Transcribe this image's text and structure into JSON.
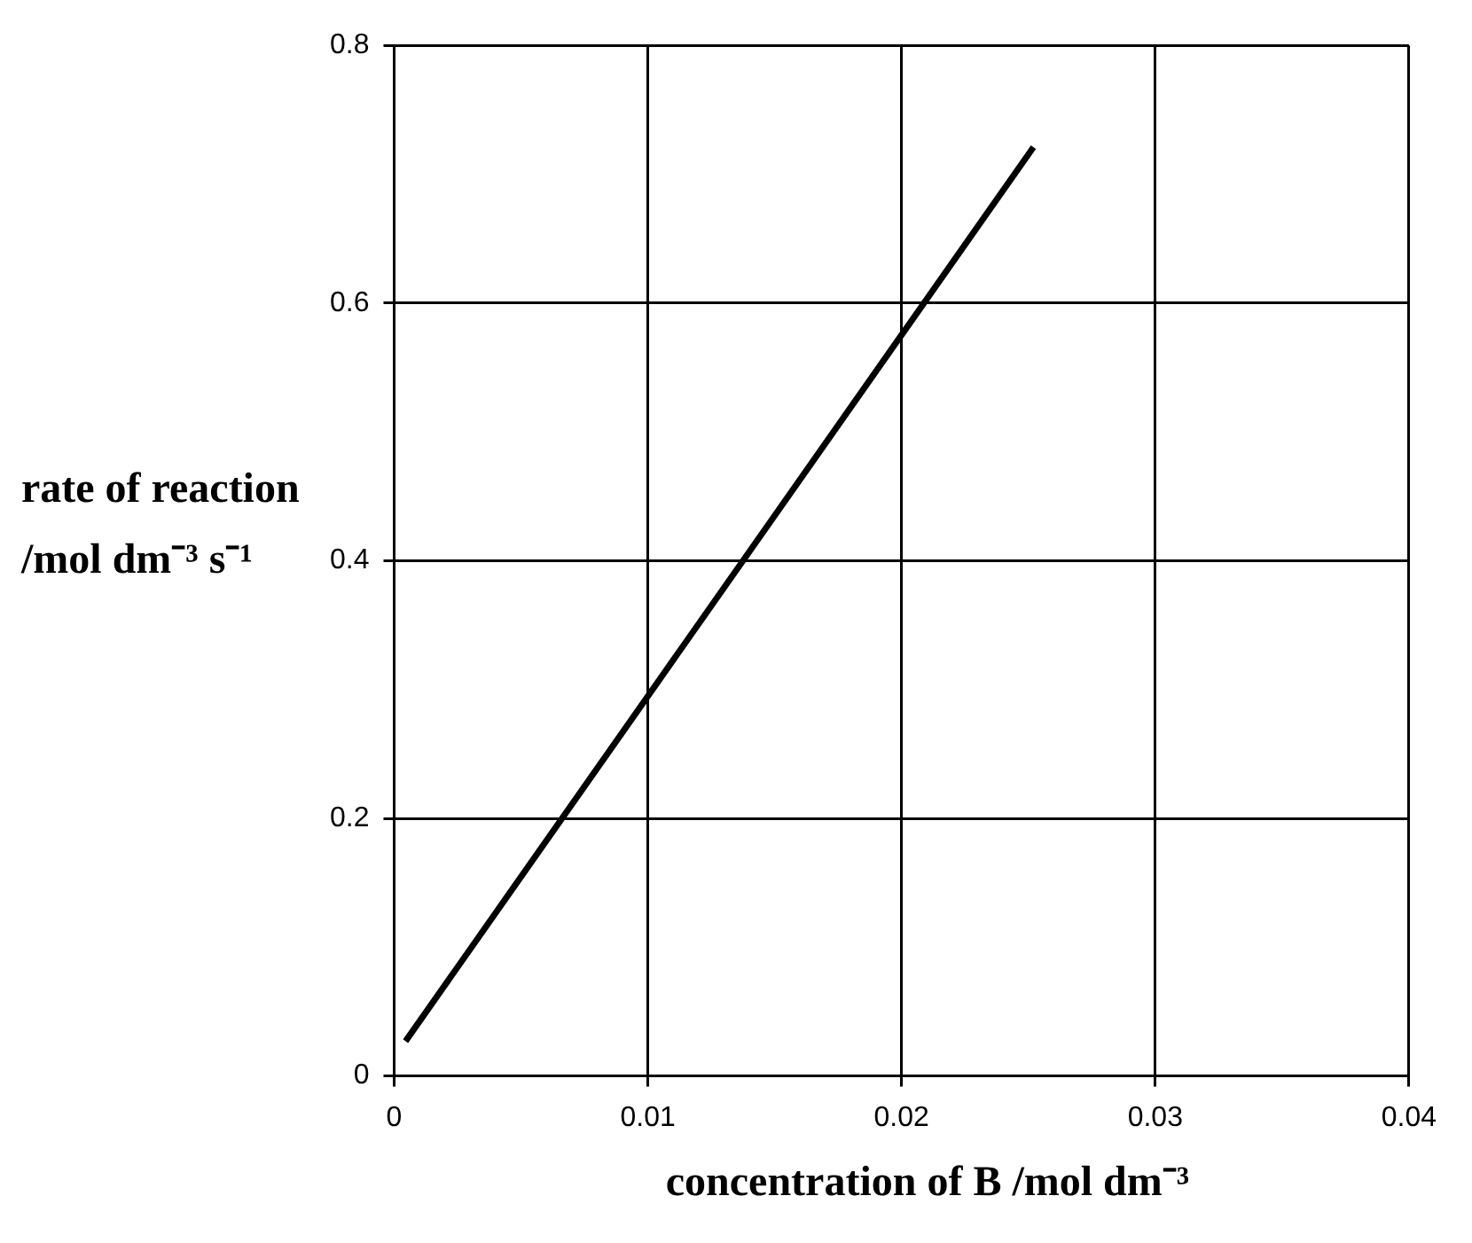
{
  "chart_data": {
    "type": "line",
    "xlabel": "concentration of B /mol dm⁻³",
    "ylabel": "rate of reaction /mol dm⁻³ s⁻¹",
    "x": [
      0.00045,
      0.0252
    ],
    "series": [
      {
        "color": "#000000",
        "values": [
          0.027,
          0.721
        ]
      }
    ],
    "xlim": [
      0,
      0.04
    ],
    "ylim": [
      0,
      0.8
    ],
    "xticks": [
      0,
      0.01,
      0.02,
      0.03,
      0.04
    ],
    "yticks": [
      0,
      0.2,
      0.4,
      0.6,
      0.8
    ],
    "grid": true,
    "marker": "none",
    "line_style": "solid"
  }
}
